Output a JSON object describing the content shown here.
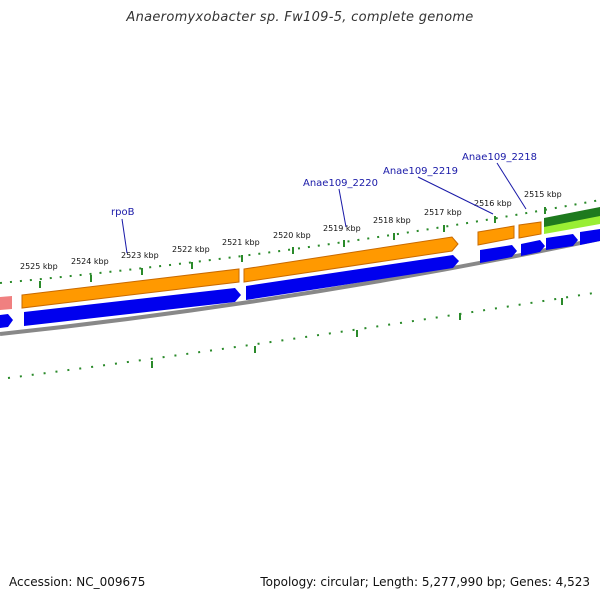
{
  "title": "Anaeromyxobacter sp. Fw109-5, complete genome",
  "footer": {
    "accession": "Accession: NC_009675",
    "summary": "Topology: circular; Length: 5,277,990 bp; Genes: 4,523"
  },
  "ticks": [
    "2525 kbp",
    "2524 kbp",
    "2523 kbp",
    "2522 kbp",
    "2521 kbp",
    "2520 kbp",
    "2519 kbp",
    "2518 kbp",
    "2517 kbp",
    "2516 kbp",
    "2515 kbp"
  ],
  "gene_labels": [
    "rpoB",
    "Anae109_2220",
    "Anae109_2219",
    "Anae109_2218"
  ],
  "colors": {
    "cds_orange": "#ff9900",
    "cds_orange_dark": "#c96a00",
    "cds_blue": "#0000ee",
    "cds_green": "#1e7a1e",
    "cds_lightgreen": "#99ee33",
    "rrna_pink": "#f08080",
    "backbone": "#888888",
    "tick_green": "#2a8a2a",
    "label_blue": "#1a1aa8"
  }
}
